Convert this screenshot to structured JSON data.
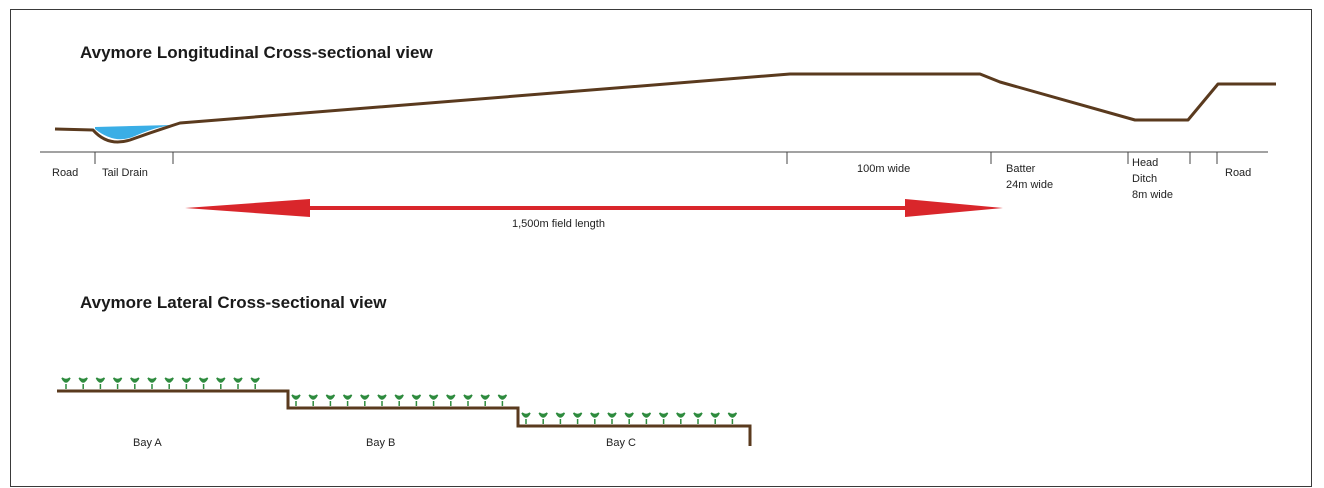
{
  "longitudinal": {
    "title": "Avymore  Longitudinal Cross-sectional view",
    "labels": {
      "road_left": "Road",
      "tail_drain": "Tail Drain",
      "width_100m": "100m wide",
      "batter_line1": "Batter",
      "batter_line2": "24m wide",
      "head_ditch_line1": "Head",
      "head_ditch_line2": "Ditch",
      "head_ditch_line3": "8m wide",
      "road_right": "Road"
    },
    "field_length": "1,500m field length"
  },
  "lateral": {
    "title": "Avymore  Lateral Cross-sectional view",
    "bays": [
      "Bay A",
      "Bay B",
      "Bay C"
    ]
  },
  "colors": {
    "ground": "#5a3a1e",
    "water": "#3aaee6",
    "arrow": "#d9262b",
    "plant": "#2e8b3e",
    "tick": "#444444"
  }
}
